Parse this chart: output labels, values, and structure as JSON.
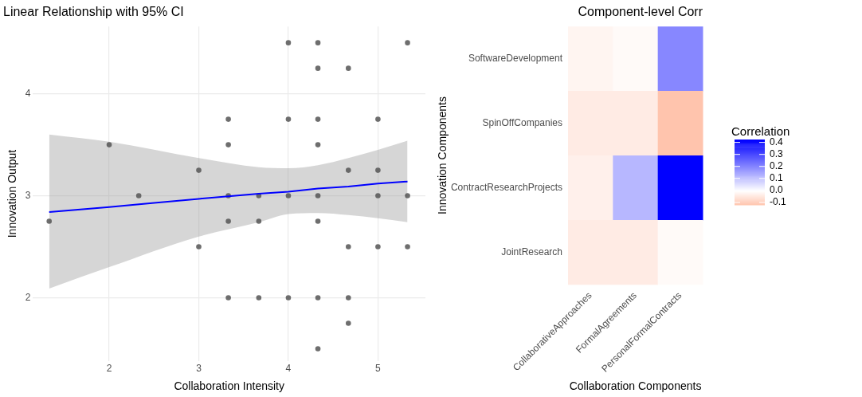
{
  "chart_data": [
    {
      "type": "scatter",
      "title": "Linear Relationship with 95% CI",
      "xlabel": "Collaboration Intensity",
      "ylabel": "Innovation Output",
      "xlim": [
        1.15,
        5.53
      ],
      "xticks": [
        2,
        3,
        4,
        5
      ],
      "ylim": [
        1.38,
        4.66
      ],
      "yticks": [
        2,
        3,
        4
      ],
      "grid": true,
      "legend": false,
      "marker": "circle",
      "series": [
        {
          "type": "line",
          "color": "#0000ff",
          "line_style": "solid",
          "marker": "none",
          "x": [
            1.33,
            2,
            3,
            3.67,
            4,
            4.33,
            4.67,
            5,
            5.33
          ],
          "values": [
            2.84,
            2.89,
            2.97,
            3.02,
            3.04,
            3.07,
            3.09,
            3.12,
            3.14
          ],
          "lower": [
            2.09,
            2.3,
            2.6,
            2.74,
            2.82,
            2.83,
            2.81,
            2.78,
            2.74
          ],
          "upper": [
            3.6,
            3.53,
            3.37,
            3.28,
            3.27,
            3.3,
            3.37,
            3.45,
            3.54
          ]
        },
        {
          "type": "scatter",
          "color": "#555555",
          "x": [
            1.33,
            2,
            2.33,
            3,
            3,
            3.33,
            3.33,
            3.33,
            3.33,
            3.33,
            3.67,
            3.67,
            3.67,
            4,
            4,
            4,
            4,
            4.33,
            4.33,
            4.33,
            4.33,
            4.33,
            4.33,
            4.33,
            4.33,
            4.67,
            4.67,
            4.67,
            4.67,
            4.67,
            5,
            5,
            5,
            5,
            5.33,
            5.33,
            5.33
          ],
          "values": [
            2.75,
            3.5,
            3,
            3.25,
            2.5,
            3.75,
            3.5,
            3,
            2.75,
            2,
            3,
            2.75,
            2,
            4.5,
            3.75,
            3,
            2,
            4.5,
            4.25,
            3.75,
            3.5,
            3,
            2.75,
            2,
            1.5,
            4.25,
            3.25,
            2.5,
            2,
            1.75,
            3.75,
            3.25,
            3,
            2.5,
            4.5,
            3,
            2.5
          ]
        }
      ]
    },
    {
      "type": "heatmap",
      "title": "Component-level Corr",
      "xlabel": "Collaboration Components",
      "ylabel": "Innovation Components",
      "clabel": "Correlation",
      "categories": [
        "CollaborativeApproaches",
        "FormalAgreements",
        "PersonalFormalContracts"
      ],
      "y_categories": [
        "SoftwareDevelopment",
        "SpinOffCompanies",
        "ContractResearchProjects",
        "JointResearch"
      ],
      "cells": [
        [
          -0.02,
          -0.01,
          0.2
        ],
        [
          -0.04,
          -0.04,
          -0.12
        ],
        [
          -0.03,
          0.12,
          0.424
        ],
        [
          -0.04,
          -0.04,
          -0.01
        ]
      ],
      "clim": [
        -0.12,
        0.424
      ],
      "cticks": [
        {
          "value": -0.1,
          "label": "-0.1"
        },
        {
          "value": 0,
          "label": "0.0"
        },
        {
          "value": 0.1,
          "label": "0.1"
        },
        {
          "value": 0.2,
          "label": "0.2"
        },
        {
          "value": 0.3,
          "label": "0.3"
        },
        {
          "value": 0.4,
          "label": "0.4"
        }
      ],
      "colors": [
        "#ffc4ad",
        "#ffffff",
        "#0000ff"
      ]
    }
  ]
}
